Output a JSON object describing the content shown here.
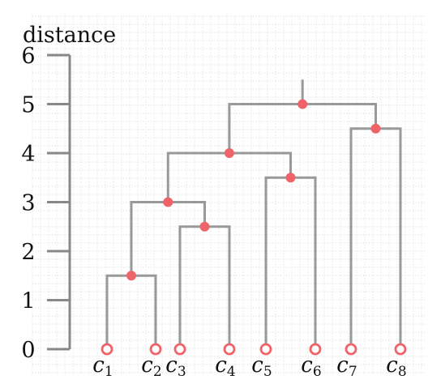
{
  "chart_data": {
    "type": "dendrogram",
    "ylabel": "distance",
    "ylim": [
      0,
      6
    ],
    "y_ticks": [
      0,
      1,
      2,
      3,
      4,
      5,
      6
    ],
    "grid": true,
    "leaves": [
      {
        "id": "c1",
        "base": "c",
        "sub": "1"
      },
      {
        "id": "c2",
        "base": "c",
        "sub": "2"
      },
      {
        "id": "c3",
        "base": "c",
        "sub": "3"
      },
      {
        "id": "c4",
        "base": "c",
        "sub": "4"
      },
      {
        "id": "c5",
        "base": "c",
        "sub": "5"
      },
      {
        "id": "c6",
        "base": "c",
        "sub": "6"
      },
      {
        "id": "c7",
        "base": "c",
        "sub": "7"
      },
      {
        "id": "c8",
        "base": "c",
        "sub": "8"
      }
    ],
    "merges": [
      {
        "id": "m12",
        "left": "c1",
        "right": "c2",
        "distance": 1.5
      },
      {
        "id": "m34",
        "left": "c3",
        "right": "c4",
        "distance": 2.5
      },
      {
        "id": "m1234",
        "left": "m12",
        "right": "m34",
        "distance": 3.0
      },
      {
        "id": "m56",
        "left": "c5",
        "right": "c6",
        "distance": 3.5
      },
      {
        "id": "m123456",
        "left": "m1234",
        "right": "m56",
        "distance": 4.0
      },
      {
        "id": "m78",
        "left": "c7",
        "right": "c8",
        "distance": 4.5
      },
      {
        "id": "root",
        "left": "m123456",
        "right": "m78",
        "distance": 5.0
      }
    ],
    "root_stem_top": 5.5,
    "colors": {
      "branch": "#999999",
      "node": "#f06368",
      "axis": "#888888",
      "grid": "#d4d4d4",
      "text": "#111111"
    }
  }
}
